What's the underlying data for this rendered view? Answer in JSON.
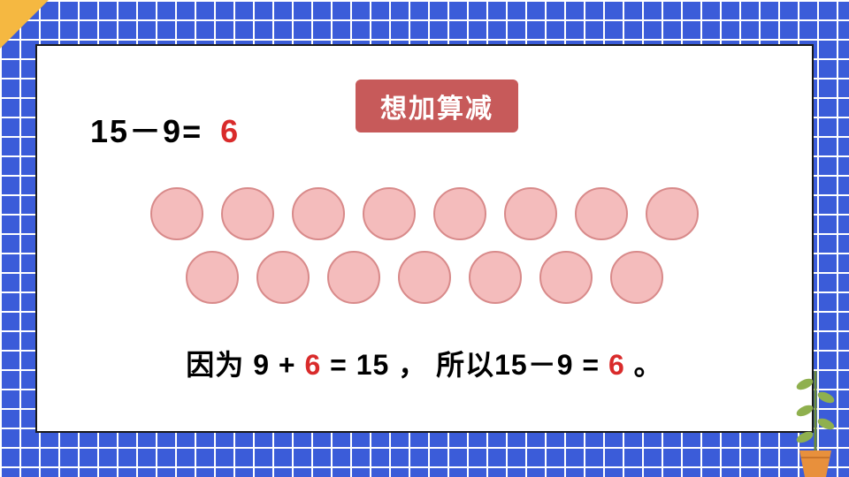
{
  "slide": {
    "background": {
      "checker_color": "#3b5cd9",
      "line_color": "#ffffff",
      "cell_size": 22
    },
    "corner_triangle_color": "#f5b841",
    "canvas_bg": "#ffffff",
    "canvas_border": "#1a1a1a"
  },
  "method_badge": {
    "text": "想加算减",
    "bg_color": "#c75a5a",
    "text_color": "#ffffff",
    "fontsize": 30
  },
  "equation": {
    "lhs": "15－9=",
    "result": "6",
    "result_color": "#d92b2b",
    "fontsize": 36
  },
  "circles": {
    "rows": [
      8,
      7
    ],
    "fill_color": "#f4bcbc",
    "border_color": "#d88a8a",
    "diameter": 60,
    "gap": 20
  },
  "explanation": {
    "part1": "因为 9 + ",
    "highlight1": "6",
    "part2": " = 15 ， 所以15－9 = ",
    "highlight2": "6",
    "part3": " 。",
    "highlight_color": "#d92b2b",
    "fontsize": 32
  },
  "plant": {
    "pot_color": "#e8903c",
    "stem_color": "#6a8a3a",
    "leaf_color": "#8fb04e"
  }
}
